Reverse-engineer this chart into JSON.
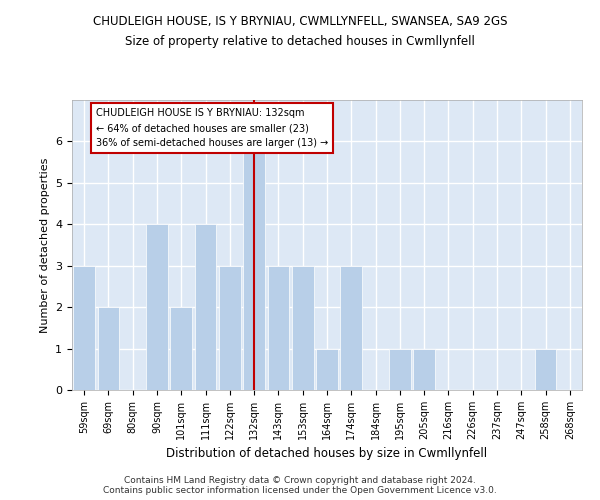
{
  "title": "CHUDLEIGH HOUSE, IS Y BRYNIAU, CWMLLYNFELL, SWANSEA, SA9 2GS",
  "subtitle": "Size of property relative to detached houses in Cwmllynfell",
  "xlabel": "Distribution of detached houses by size in Cwmllynfell",
  "ylabel": "Number of detached properties",
  "footer_line1": "Contains HM Land Registry data © Crown copyright and database right 2024.",
  "footer_line2": "Contains public sector information licensed under the Open Government Licence v3.0.",
  "categories": [
    "59sqm",
    "69sqm",
    "80sqm",
    "90sqm",
    "101sqm",
    "111sqm",
    "122sqm",
    "132sqm",
    "143sqm",
    "153sqm",
    "164sqm",
    "174sqm",
    "184sqm",
    "195sqm",
    "205sqm",
    "216sqm",
    "226sqm",
    "237sqm",
    "247sqm",
    "258sqm",
    "268sqm"
  ],
  "values": [
    3,
    2,
    0,
    4,
    2,
    4,
    3,
    6,
    3,
    3,
    1,
    3,
    0,
    1,
    1,
    0,
    0,
    0,
    0,
    1,
    0
  ],
  "highlight_index": 7,
  "highlight_color": "#c00000",
  "bar_color": "#b8cfe8",
  "background_color": "#dde8f5",
  "grid_color": "#ffffff",
  "ylim": [
    0,
    7
  ],
  "yticks": [
    0,
    1,
    2,
    3,
    4,
    5,
    6,
    7
  ],
  "annotation_text": "CHUDLEIGH HOUSE IS Y BRYNIAU: 132sqm\n← 64% of detached houses are smaller (23)\n36% of semi-detached houses are larger (13) →"
}
